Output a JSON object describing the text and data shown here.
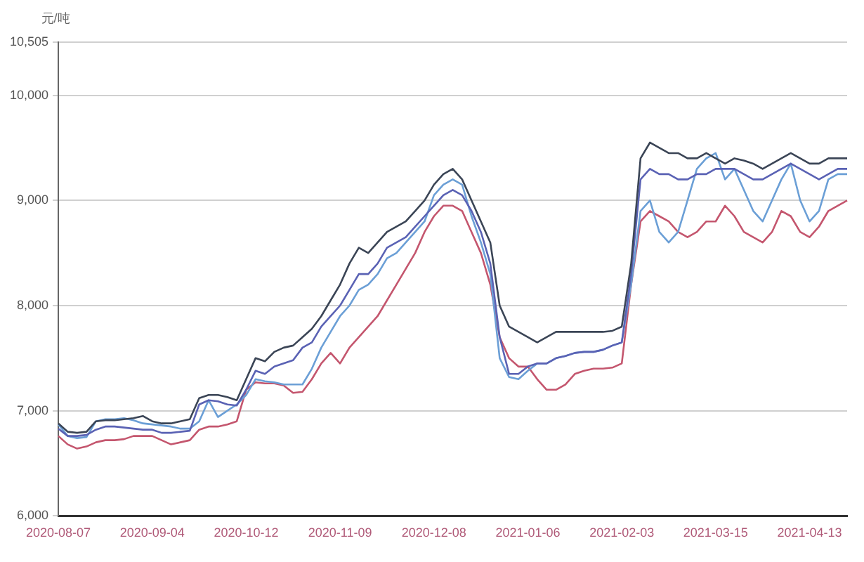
{
  "chart_data": {
    "type": "line",
    "ylabel": "元/吨",
    "categories": [
      "2020-08-07",
      null,
      null,
      null,
      null,
      null,
      null,
      null,
      null,
      null,
      "2020-09-04",
      null,
      null,
      null,
      null,
      null,
      null,
      null,
      null,
      null,
      "2020-10-12",
      null,
      null,
      null,
      null,
      null,
      null,
      null,
      null,
      null,
      "2020-11-09",
      null,
      null,
      null,
      null,
      null,
      null,
      null,
      null,
      null,
      "2020-12-08",
      null,
      null,
      null,
      null,
      null,
      null,
      null,
      null,
      null,
      "2021-01-06",
      null,
      null,
      null,
      null,
      null,
      null,
      null,
      null,
      null,
      "2021-02-03",
      null,
      null,
      null,
      null,
      null,
      null,
      null,
      null,
      null,
      "2021-03-15",
      null,
      null,
      null,
      null,
      null,
      null,
      null,
      null,
      null,
      "2021-04-13",
      null,
      null,
      null,
      null
    ],
    "series": [
      {
        "color": "#3b4556",
        "values": [
          6880,
          6800,
          6790,
          6800,
          6900,
          6910,
          6910,
          6920,
          6930,
          6950,
          6900,
          6880,
          6880,
          6900,
          6920,
          7120,
          7150,
          7150,
          7130,
          7100,
          7300,
          7500,
          7470,
          7560,
          7600,
          7620,
          7700,
          7780,
          7900,
          8050,
          8200,
          8400,
          8550,
          8500,
          8600,
          8700,
          8750,
          8800,
          8900,
          9000,
          9150,
          9250,
          9300,
          9200,
          9000,
          8800,
          8600,
          8000,
          7800,
          7750,
          7700,
          7650,
          7700,
          7750,
          7750,
          7750,
          7750,
          7750,
          7750,
          7760,
          7800,
          8400,
          9400,
          9550,
          9500,
          9450,
          9450,
          9400,
          9400,
          9450,
          9400,
          9350,
          9400,
          9380,
          9350,
          9300,
          9350,
          9400,
          9450,
          9400,
          9350,
          9350,
          9400,
          9400,
          9400
        ]
      },
      {
        "color": "#5a62b4",
        "values": [
          6830,
          6760,
          6760,
          6770,
          6820,
          6850,
          6850,
          6840,
          6830,
          6820,
          6820,
          6790,
          6790,
          6800,
          6810,
          7060,
          7100,
          7090,
          7060,
          7050,
          7200,
          7380,
          7350,
          7420,
          7450,
          7480,
          7600,
          7650,
          7800,
          7900,
          8000,
          8150,
          8300,
          8300,
          8400,
          8550,
          8600,
          8650,
          8750,
          8850,
          8950,
          9050,
          9100,
          9050,
          8900,
          8700,
          8400,
          7700,
          7350,
          7350,
          7420,
          7450,
          7450,
          7500,
          7520,
          7550,
          7560,
          7560,
          7580,
          7620,
          7650,
          8300,
          9200,
          9300,
          9250,
          9250,
          9200,
          9200,
          9250,
          9250,
          9300,
          9300,
          9300,
          9250,
          9200,
          9200,
          9250,
          9300,
          9350,
          9300,
          9250,
          9200,
          9250,
          9300,
          9300
        ]
      },
      {
        "color": "#6b9fd6",
        "values": [
          6870,
          6760,
          6740,
          6750,
          6900,
          6920,
          6920,
          6930,
          6910,
          6880,
          6870,
          6860,
          6850,
          6830,
          6830,
          6900,
          7100,
          6940,
          7000,
          7060,
          7150,
          7300,
          7280,
          7270,
          7250,
          7250,
          7250,
          7400,
          7600,
          7750,
          7900,
          8000,
          8150,
          8200,
          8300,
          8450,
          8500,
          8600,
          8700,
          8800,
          9050,
          9150,
          9200,
          9150,
          8850,
          8600,
          8300,
          7500,
          7320,
          7300,
          7380,
          7450,
          7450,
          7500,
          7520,
          7550,
          7560,
          7560,
          7580,
          7620,
          7650,
          8200,
          8900,
          9000,
          8700,
          8600,
          8700,
          9000,
          9300,
          9400,
          9450,
          9200,
          9300,
          9100,
          8900,
          8800,
          9000,
          9200,
          9350,
          9000,
          8800,
          8900,
          9200,
          9250,
          9250
        ]
      },
      {
        "color": "#c4566e",
        "values": [
          6760,
          6680,
          6640,
          6660,
          6700,
          6720,
          6720,
          6730,
          6760,
          6760,
          6760,
          6720,
          6680,
          6700,
          6720,
          6820,
          6850,
          6850,
          6870,
          6900,
          7200,
          7270,
          7260,
          7260,
          7240,
          7170,
          7180,
          7300,
          7450,
          7550,
          7450,
          7600,
          7700,
          7800,
          7900,
          8050,
          8200,
          8350,
          8500,
          8700,
          8850,
          8950,
          8950,
          8900,
          8700,
          8500,
          8200,
          7700,
          7500,
          7420,
          7420,
          7300,
          7200,
          7200,
          7250,
          7350,
          7380,
          7400,
          7400,
          7410,
          7450,
          8200,
          8800,
          8900,
          8850,
          8800,
          8700,
          8650,
          8700,
          8800,
          8800,
          8950,
          8850,
          8700,
          8650,
          8600,
          8700,
          8900,
          8850,
          8700,
          8650,
          8750,
          8900,
          8950,
          9000
        ]
      }
    ],
    "ylim": [
      6000,
      10505
    ],
    "yticks": [
      {
        "value": 6000,
        "label": "6,000"
      },
      {
        "value": 7000,
        "label": "7,000"
      },
      {
        "value": 8000,
        "label": "8,000"
      },
      {
        "value": 9000,
        "label": "9,000"
      },
      {
        "value": 10000,
        "label": "10,000"
      },
      {
        "value": 10505,
        "label": "10,505"
      }
    ],
    "grid": "y"
  }
}
